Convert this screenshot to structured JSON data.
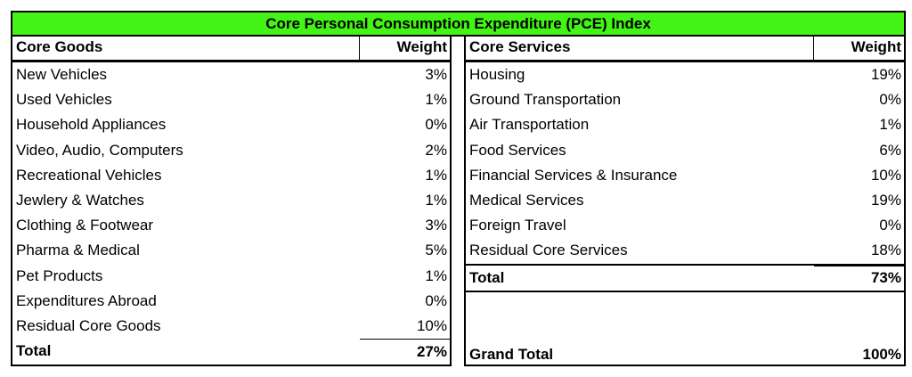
{
  "title": "Core Personal Consumption Expenditure (PCE) Index",
  "goods": {
    "header": "Core Goods",
    "weight_header": "Weight",
    "rows": [
      {
        "name": "New Vehicles",
        "weight": "3%"
      },
      {
        "name": "Used Vehicles",
        "weight": "1%"
      },
      {
        "name": "Household Appliances",
        "weight": "0%"
      },
      {
        "name": "Video, Audio, Computers",
        "weight": "2%"
      },
      {
        "name": "Recreational Vehicles",
        "weight": "1%"
      },
      {
        "name": "Jewlery & Watches",
        "weight": "1%"
      },
      {
        "name": "Clothing & Footwear",
        "weight": "3%"
      },
      {
        "name": "Pharma & Medical",
        "weight": "5%"
      },
      {
        "name": "Pet Products",
        "weight": "1%"
      },
      {
        "name": "Expenditures Abroad",
        "weight": "0%"
      },
      {
        "name": "Residual Core Goods",
        "weight": "10%"
      }
    ],
    "total_label": "Total",
    "total_value": "27%"
  },
  "services": {
    "header": "Core Services",
    "weight_header": "Weight",
    "rows": [
      {
        "name": "Housing",
        "weight": "19%"
      },
      {
        "name": "Ground Transportation",
        "weight": "0%"
      },
      {
        "name": "Air Transportation",
        "weight": "1%"
      },
      {
        "name": "Food Services",
        "weight": "6%"
      },
      {
        "name": "Financial Services & Insurance",
        "weight": "10%"
      },
      {
        "name": "Medical Services",
        "weight": "19%"
      },
      {
        "name": "Foreign Travel",
        "weight": "0%"
      },
      {
        "name": "Residual Core Services",
        "weight": "18%"
      }
    ],
    "total_label": "Total",
    "total_value": "73%"
  },
  "grand_total": {
    "label": "Grand Total",
    "value": "100%"
  }
}
